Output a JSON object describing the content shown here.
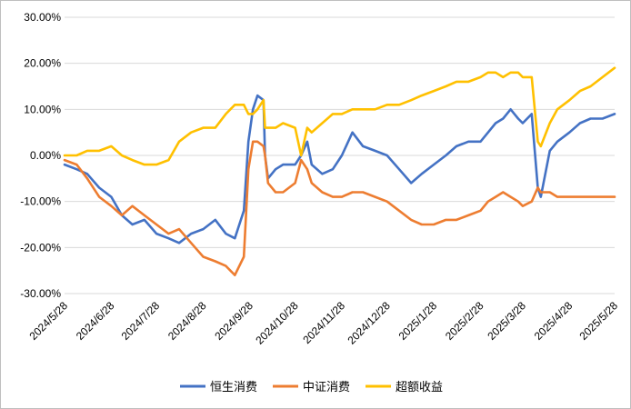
{
  "chart_data": {
    "type": "line",
    "title": "",
    "xlabel": "",
    "ylabel": "",
    "ylim": [
      -30,
      30
    ],
    "y_ticks": [
      "30.00%",
      "20.00%",
      "10.00%",
      "0.00%",
      "-10.00%",
      "-20.00%",
      "-30.00%"
    ],
    "y_tick_values": [
      30,
      20,
      10,
      0,
      -10,
      -20,
      -30
    ],
    "x_ticks": [
      "2024/5/28",
      "2024/6/28",
      "2024/7/28",
      "2024/8/28",
      "2024/9/28",
      "2024/10/28",
      "2024/11/28",
      "2024/12/28",
      "2025/1/28",
      "2025/2/28",
      "2025/3/28",
      "2025/4/28",
      "2025/5/28"
    ],
    "grid": "horizontal",
    "legend": "bottom",
    "colors": {
      "恒生消费": "#4472C4",
      "中证消费": "#ED7D31",
      "超额收益": "#FFC000",
      "grid": "#d9d9d9"
    },
    "x_dates": [
      "2024-05-28",
      "2024-06-05",
      "2024-06-12",
      "2024-06-20",
      "2024-06-28",
      "2024-07-05",
      "2024-07-12",
      "2024-07-20",
      "2024-07-28",
      "2024-08-05",
      "2024-08-12",
      "2024-08-20",
      "2024-08-28",
      "2024-09-05",
      "2024-09-12",
      "2024-09-18",
      "2024-09-24",
      "2024-09-27",
      "2024-09-30",
      "2024-10-03",
      "2024-10-07",
      "2024-10-08",
      "2024-10-10",
      "2024-10-15",
      "2024-10-20",
      "2024-10-28",
      "2024-11-01",
      "2024-11-05",
      "2024-11-08",
      "2024-11-15",
      "2024-11-22",
      "2024-11-28",
      "2024-12-05",
      "2024-12-12",
      "2024-12-20",
      "2024-12-28",
      "2025-01-05",
      "2025-01-13",
      "2025-01-20",
      "2025-01-28",
      "2025-02-05",
      "2025-02-12",
      "2025-02-20",
      "2025-02-28",
      "2025-03-05",
      "2025-03-10",
      "2025-03-15",
      "2025-03-20",
      "2025-03-25",
      "2025-03-28",
      "2025-04-03",
      "2025-04-07",
      "2025-04-09",
      "2025-04-15",
      "2025-04-20",
      "2025-04-28",
      "2025-05-05",
      "2025-05-12",
      "2025-05-20",
      "2025-05-28"
    ],
    "series": [
      {
        "name": "恒生消费",
        "values": [
          -2,
          -3,
          -4,
          -7,
          -9,
          -13,
          -15,
          -14,
          -17,
          -18,
          -19,
          -17,
          -16,
          -14,
          -17,
          -18,
          -12,
          3,
          10,
          13,
          12,
          0,
          -5,
          -3,
          -2,
          -2,
          0,
          3,
          -2,
          -4,
          -3,
          0,
          5,
          2,
          1,
          0,
          -3,
          -6,
          -4,
          -2,
          0,
          2,
          3,
          3,
          5,
          7,
          8,
          10,
          8,
          7,
          9,
          -7,
          -9,
          1,
          3,
          5,
          7,
          8,
          8,
          9
        ]
      },
      {
        "name": "中证消费",
        "values": [
          -1,
          -2,
          -5,
          -9,
          -11,
          -13,
          -11,
          -13,
          -15,
          -17,
          -16,
          -19,
          -22,
          -23,
          -24,
          -26,
          -22,
          -3,
          3,
          3,
          2,
          0,
          -6,
          -8,
          -8,
          -6,
          -1,
          -3,
          -6,
          -8,
          -9,
          -9,
          -8,
          -8,
          -9,
          -10,
          -12,
          -14,
          -15,
          -15,
          -14,
          -14,
          -13,
          -12,
          -10,
          -9,
          -8,
          -9,
          -10,
          -11,
          -10,
          -7,
          -8,
          -8,
          -9,
          -9,
          -9,
          -9,
          -9,
          -9
        ]
      },
      {
        "name": "超额收益",
        "values": [
          0,
          0,
          1,
          1,
          2,
          0,
          -1,
          -2,
          -2,
          -1,
          3,
          5,
          6,
          6,
          9,
          11,
          11,
          9,
          9,
          10,
          12,
          6,
          6,
          6,
          7,
          6,
          0,
          6,
          5,
          7,
          9,
          9,
          10,
          10,
          10,
          11,
          11,
          12,
          13,
          14,
          15,
          16,
          16,
          17,
          18,
          18,
          17,
          18,
          18,
          17,
          17,
          3,
          2,
          7,
          10,
          12,
          14,
          15,
          17,
          19
        ]
      }
    ]
  }
}
